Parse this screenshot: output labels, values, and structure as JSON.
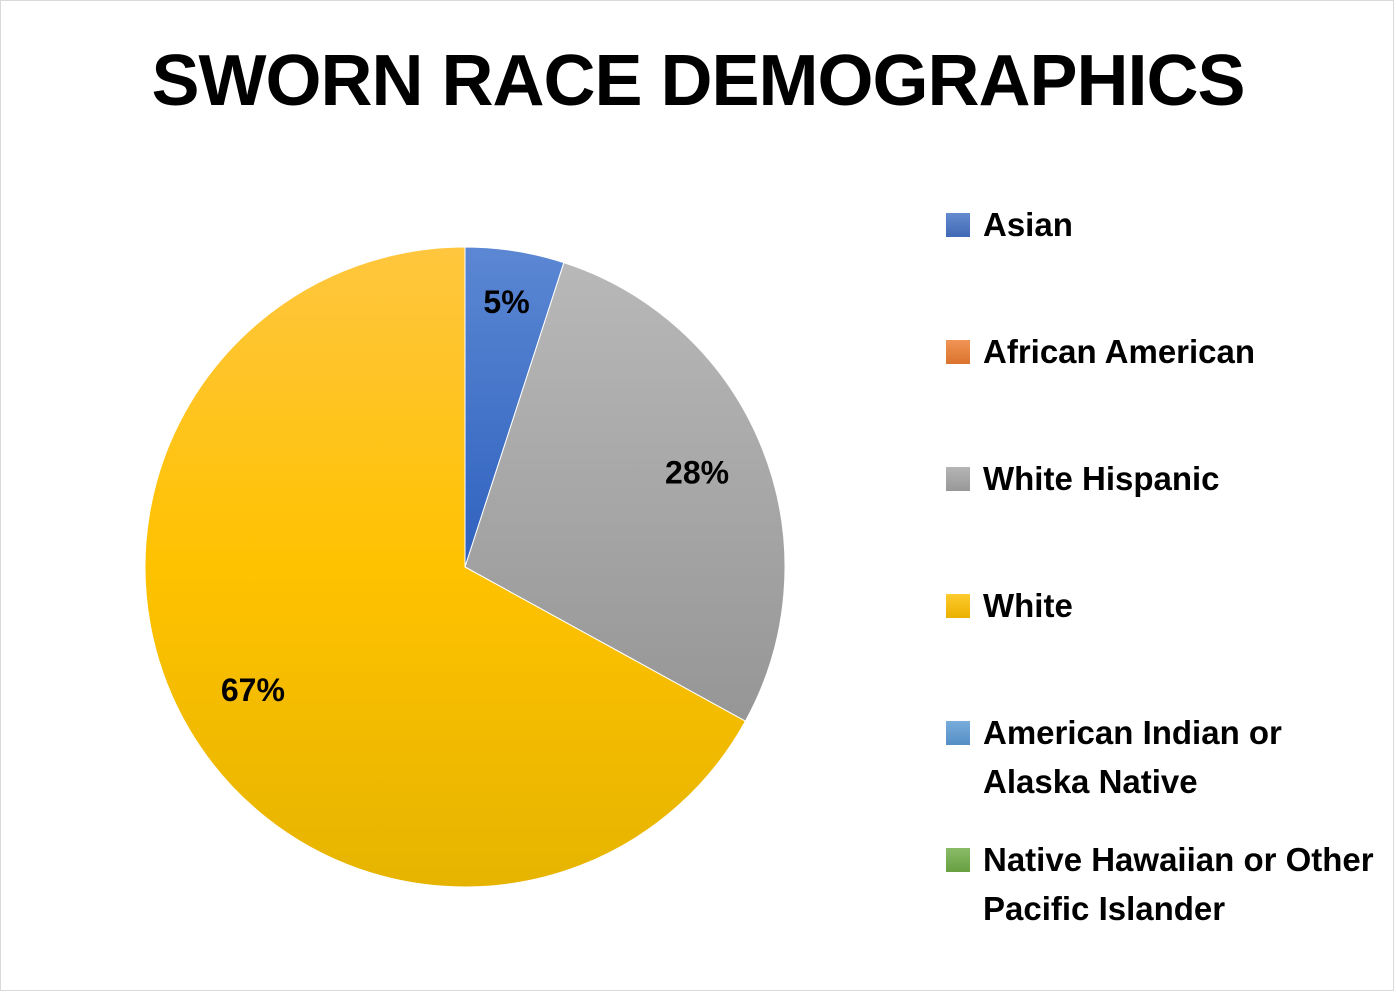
{
  "chart_data": {
    "type": "pie",
    "title": "SWORN RACE DEMOGRAPHICS",
    "categories": [
      "Asian",
      "African American",
      "White Hispanic",
      "White",
      "American Indian or Alaska Native",
      "Native Hawaiian or Other Pacific Islander"
    ],
    "values": [
      5,
      0,
      28,
      67,
      0,
      0
    ],
    "data_labels": [
      "5%",
      "",
      "28%",
      "67%",
      "",
      ""
    ],
    "colors": [
      "#4472c4",
      "#ed7d31",
      "#a5a5a5",
      "#ffc000",
      "#5b9bd5",
      "#70ad47"
    ],
    "legend": {
      "position": "right",
      "entries": [
        {
          "label": "Asian",
          "color": "#4472c4"
        },
        {
          "label": "African American",
          "color": "#ed7d31"
        },
        {
          "label": "White Hispanic",
          "color": "#a5a5a5"
        },
        {
          "label": "White",
          "color": "#ffc000"
        },
        {
          "label": "American Indian or Alaska Native",
          "color": "#5b9bd5"
        },
        {
          "label": "Native Hawaiian or Other Pacific Islander",
          "color": "#70ad47"
        }
      ]
    }
  }
}
